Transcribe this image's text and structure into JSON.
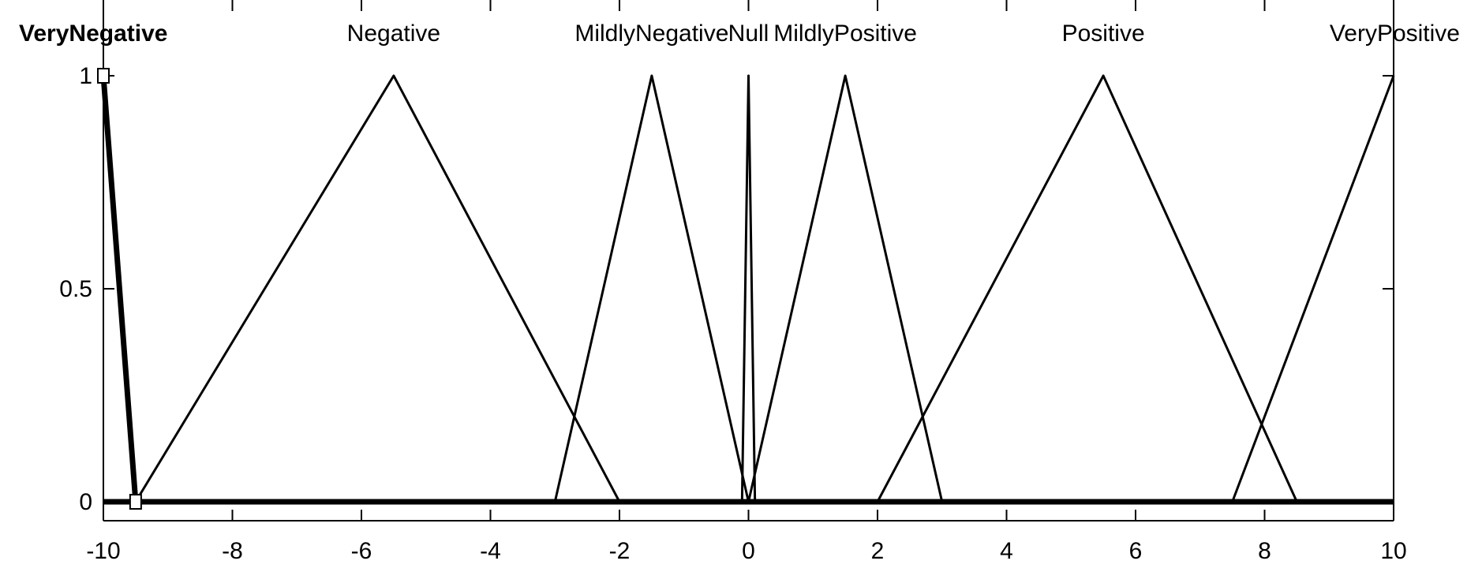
{
  "chart_data": {
    "type": "line",
    "title": "",
    "xlabel": "",
    "ylabel": "",
    "xlim": [
      -10,
      10
    ],
    "ylim": [
      0,
      1
    ],
    "grid": false,
    "x_ticks": [
      -10,
      -8,
      -6,
      -4,
      -2,
      0,
      2,
      4,
      6,
      8,
      10
    ],
    "x_tick_labels": [
      "-10",
      "-8",
      "-6",
      "-4",
      "-2",
      "0",
      "2",
      "4",
      "6",
      "8",
      "10"
    ],
    "y_ticks": [
      0,
      0.5,
      1
    ],
    "y_tick_labels": [
      "0",
      "0.5",
      "1"
    ],
    "selected_series": "VeryNegative",
    "series": [
      {
        "name": "VeryNegative",
        "x": [
          -10,
          -9.5
        ],
        "y": [
          1,
          0
        ],
        "selected": true
      },
      {
        "name": "Negative",
        "x": [
          -9.5,
          -5.5,
          -2
        ],
        "y": [
          0,
          1,
          0
        ]
      },
      {
        "name": "MildlyNegative",
        "x": [
          -3,
          -1.5,
          0
        ],
        "y": [
          0,
          1,
          0
        ]
      },
      {
        "name": "Null",
        "x": [
          -0.1,
          0,
          0.1
        ],
        "y": [
          0,
          1,
          0
        ]
      },
      {
        "name": "MildlyPositive",
        "x": [
          0,
          1.5,
          3
        ],
        "y": [
          0,
          1,
          0
        ]
      },
      {
        "name": "Positive",
        "x": [
          2,
          5.5,
          8.5
        ],
        "y": [
          0,
          1,
          0
        ]
      },
      {
        "name": "VeryPositive",
        "x": [
          7.5,
          10
        ],
        "y": [
          0,
          1
        ]
      }
    ]
  }
}
